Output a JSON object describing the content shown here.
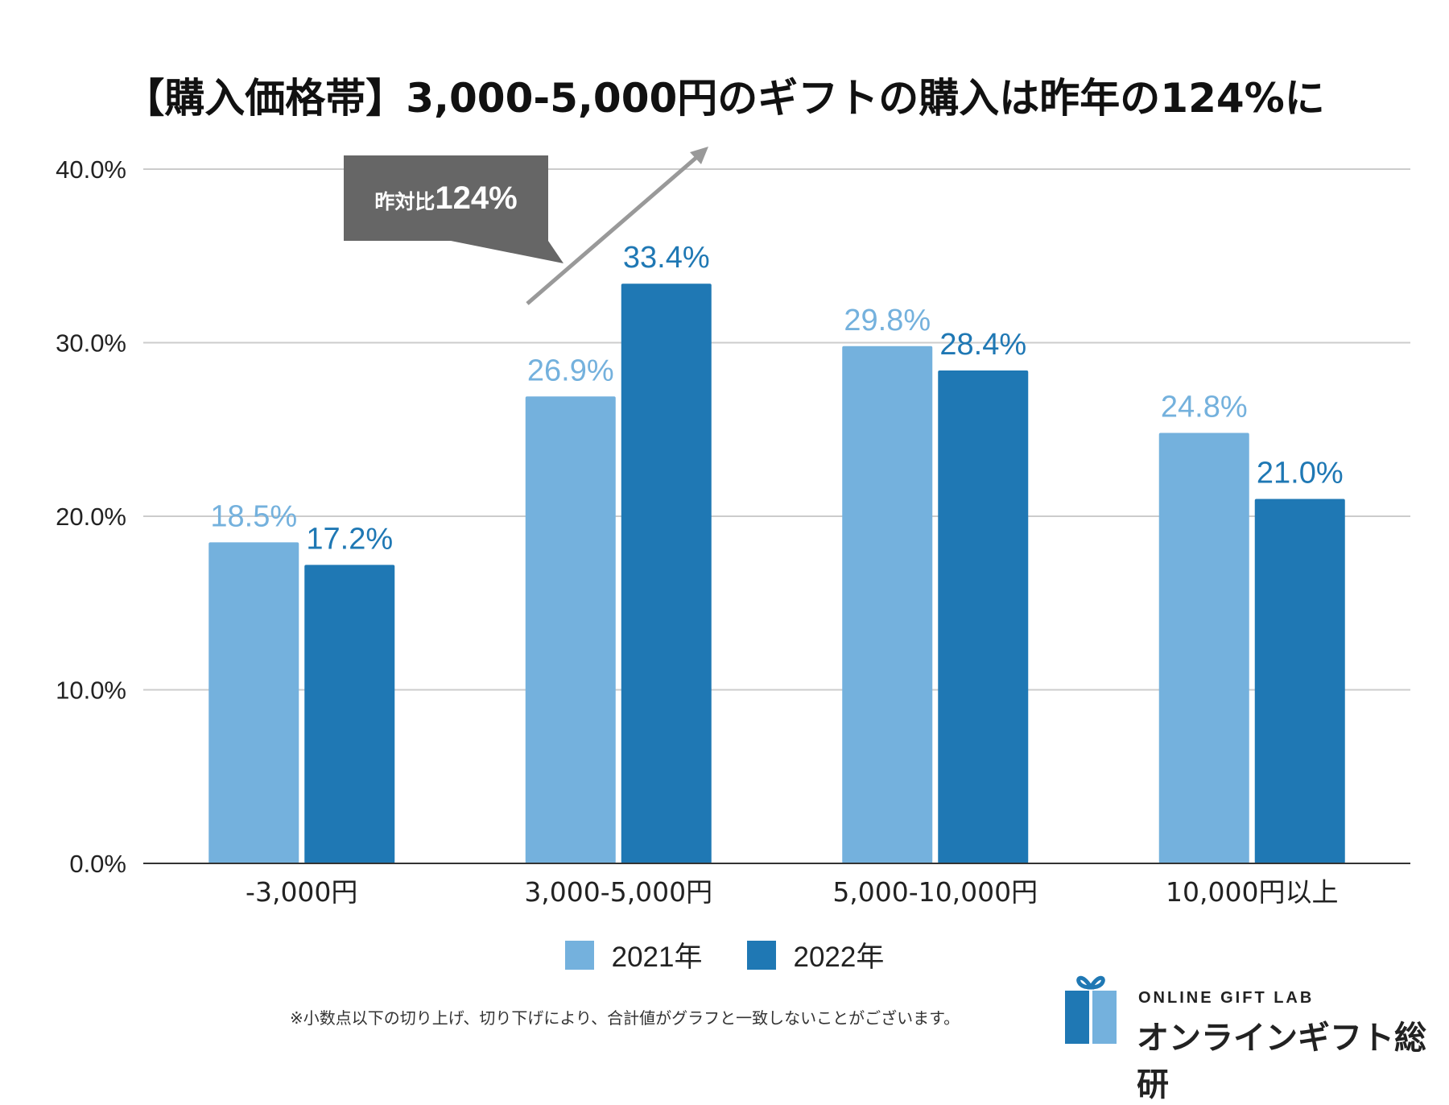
{
  "chart_data": {
    "type": "bar",
    "title": "【購入価格帯】3,000-5,000円のギフトの購入は昨年の124%に",
    "categories": [
      "-3,000円",
      "3,000-5,000円",
      "5,000-10,000円",
      "10,000円以上"
    ],
    "series": [
      {
        "name": "2021年",
        "color": "#74b1dd",
        "values": [
          18.5,
          26.9,
          29.8,
          24.8
        ],
        "labels": [
          "18.5%",
          "26.9%",
          "29.8%",
          "24.8%"
        ]
      },
      {
        "name": "2022年",
        "color": "#1f78b4",
        "values": [
          17.2,
          33.4,
          28.4,
          21.0
        ],
        "labels": [
          "17.2%",
          "33.4%",
          "28.4%",
          "21.0%"
        ]
      }
    ],
    "ylim": [
      0,
      40
    ],
    "yticks": [
      0,
      10,
      20,
      30,
      40
    ],
    "ytick_labels": [
      "0.0%",
      "10.0%",
      "20.0%",
      "30.0%",
      "40.0%"
    ],
    "grid": true,
    "legend_position": "bottom-center",
    "annotation": {
      "prefix": "昨対比",
      "value": "124%"
    }
  },
  "footnote": "※小数点以下の切り上げ、切り下げにより、合計値がグラフと一致しないことがございます。",
  "logo": {
    "en": "ONLINE GIFT LAB",
    "jp": "オンラインギフト総研",
    "color_light": "#74b1dd",
    "color_dark": "#1f78b4"
  }
}
